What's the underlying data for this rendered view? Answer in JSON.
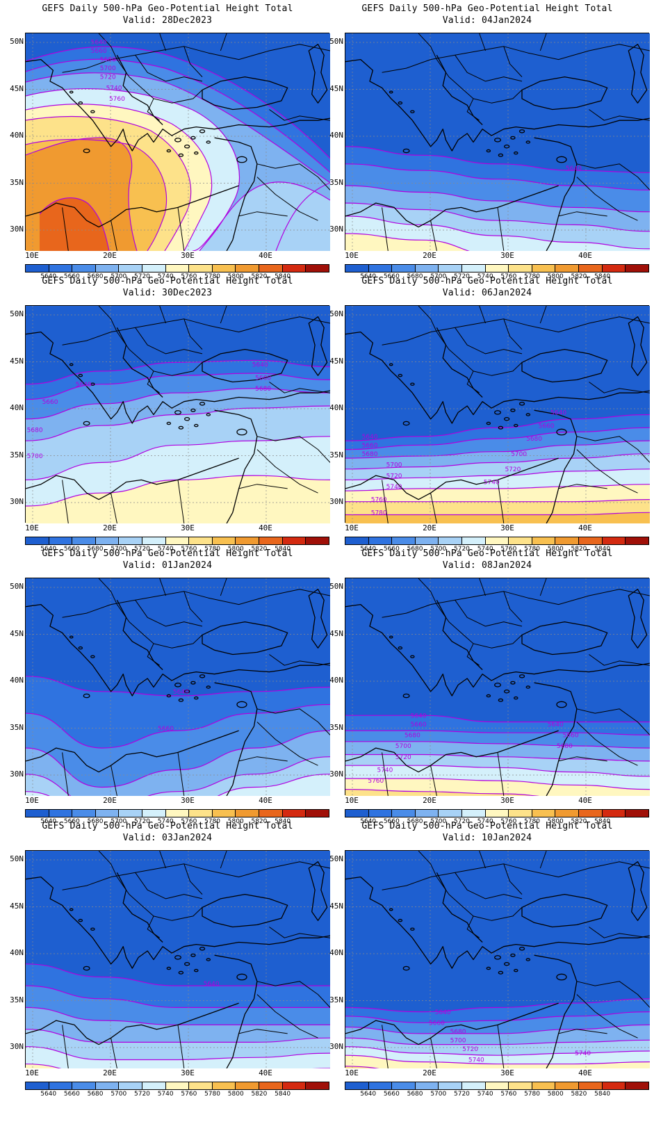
{
  "title_line": "GEFS Daily 500-hPa Geo-Potential Height Total",
  "lat_labels": [
    "50N",
    "45N",
    "40N",
    "35N",
    "30N"
  ],
  "lon_labels": [
    "10E",
    "20E",
    "30E",
    "40E"
  ],
  "colorbar": {
    "labels": [
      "5640",
      "5660",
      "5680",
      "5700",
      "5720",
      "5740",
      "5760",
      "5780",
      "5800",
      "5820",
      "5840"
    ],
    "colors": [
      "#1e5fd0",
      "#2f73e0",
      "#4a8ce8",
      "#7eb2f0",
      "#a8d2f6",
      "#d4f0fb",
      "#fff7c0",
      "#fde28a",
      "#f8c050",
      "#f09a30",
      "#e8661c",
      "#d42a10",
      "#a01008"
    ]
  },
  "contour_color": "#b000e0",
  "panels": [
    {
      "valid": "Valid: 28Dec2023",
      "labels": [
        "5640",
        "5660",
        "5680",
        "5700",
        "5720",
        "5740",
        "5760"
      ]
    },
    {
      "valid": "Valid: 04Jan2024",
      "labels": [
        "5640"
      ]
    },
    {
      "valid": "Valid: 30Dec2023",
      "labels": [
        "5640",
        "5660",
        "5680",
        "5640",
        "5660",
        "5680",
        "5700"
      ]
    },
    {
      "valid": "Valid: 06Jan2024",
      "labels": [
        "5640",
        "5660",
        "5680",
        "5700",
        "5720",
        "5740",
        "5760",
        "5780",
        "5640",
        "5660",
        "5680",
        "5700",
        "5720",
        "5740"
      ]
    },
    {
      "valid": "Valid: 01Jan2024",
      "labels": [
        "5640",
        "5660"
      ]
    },
    {
      "valid": "Valid: 08Jan2024",
      "labels": [
        "5640",
        "5660",
        "5680",
        "5700",
        "5720",
        "5740",
        "5760",
        "5640",
        "5660",
        "5680"
      ]
    },
    {
      "valid": "Valid: 03Jan2024",
      "labels": [
        "5640"
      ]
    },
    {
      "valid": "Valid: 10Jan2024",
      "labels": [
        "5640",
        "5660",
        "5680",
        "5700",
        "5720",
        "5740",
        "5740"
      ]
    }
  ]
}
